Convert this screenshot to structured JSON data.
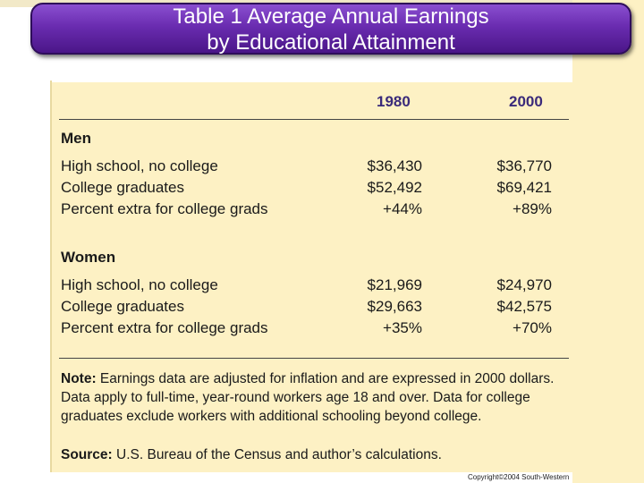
{
  "title": {
    "line1": "Table 1 Average Annual Earnings",
    "line2": "by Educational Attainment"
  },
  "table": {
    "columns": [
      "1980",
      "2000"
    ],
    "sections": [
      {
        "heading": "Men",
        "rows": [
          {
            "label": "High school, no college",
            "v1980": "$36,430",
            "v2000": "$36,770"
          },
          {
            "label": "College graduates",
            "v1980": "$52,492",
            "v2000": "$69,421"
          },
          {
            "label": "Percent extra for college grads",
            "v1980": "+44%",
            "v2000": "+89%"
          }
        ]
      },
      {
        "heading": "Women",
        "rows": [
          {
            "label": "High school, no college",
            "v1980": "$21,969",
            "v2000": "$24,970"
          },
          {
            "label": "College graduates",
            "v1980": "$29,663",
            "v2000": "$42,575"
          },
          {
            "label": "Percent extra for college grads",
            "v1980": "+35%",
            "v2000": "+70%"
          }
        ]
      }
    ]
  },
  "note": {
    "label": "Note:",
    "text": " Earnings data are adjusted for inflation and are expressed in 2000 dollars. Data apply to full-time, year-round workers age 18 and over. Data for college graduates exclude workers with additional schooling beyond college."
  },
  "source": {
    "label": "Source:",
    "text": " U.S. Bureau of the Census and author’s calculations."
  },
  "copyright": "Copyright©2004 South-Western"
}
